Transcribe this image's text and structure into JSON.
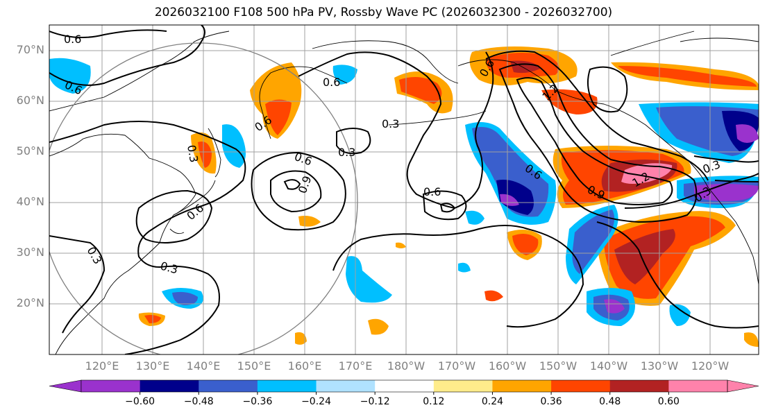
{
  "title": "2026032100 F108 500 hPa PV, Rossby Wave PC (2026032300 - 2026032700)",
  "map": {
    "lat_ticks": [
      {
        "value": 70,
        "label": "70°N"
      },
      {
        "value": 60,
        "label": "60°N"
      },
      {
        "value": 50,
        "label": "50°N"
      },
      {
        "value": 40,
        "label": "40°N"
      },
      {
        "value": 30,
        "label": "30°N"
      },
      {
        "value": 20,
        "label": "20°N"
      }
    ],
    "lon_ticks": [
      {
        "label": "120°E"
      },
      {
        "label": "130°E"
      },
      {
        "label": "140°E"
      },
      {
        "label": "150°E"
      },
      {
        "label": "160°E"
      },
      {
        "label": "170°E"
      },
      {
        "label": "180°W"
      },
      {
        "label": "170°W"
      },
      {
        "label": "160°W"
      },
      {
        "label": "150°W"
      },
      {
        "label": "140°W"
      },
      {
        "label": "130°W"
      },
      {
        "label": "120°W"
      }
    ],
    "contour_labels": [
      "0.6",
      "0.6",
      "0.6",
      "0.6",
      "0.3",
      "0.3",
      "0.6",
      "0.9",
      "0.6",
      "0.6",
      "0.3",
      "0.3",
      "0.6",
      "0.6",
      "0.9",
      "1.2",
      "0.3",
      "0.3",
      "1.2",
      "0.3"
    ]
  },
  "colorbar": {
    "colors": [
      "#9a32cd",
      "#00008b",
      "#3a5fcd",
      "#00bfff",
      "#b0e2ff",
      "#ffffff",
      "#ffec8b",
      "#ffa500",
      "#ff4500",
      "#b22222",
      "#ff82ab"
    ],
    "ticks": [
      "−0.60",
      "−0.48",
      "−0.36",
      "−0.24",
      "−0.12",
      "0.12",
      "0.24",
      "0.36",
      "0.48",
      "0.60"
    ]
  }
}
